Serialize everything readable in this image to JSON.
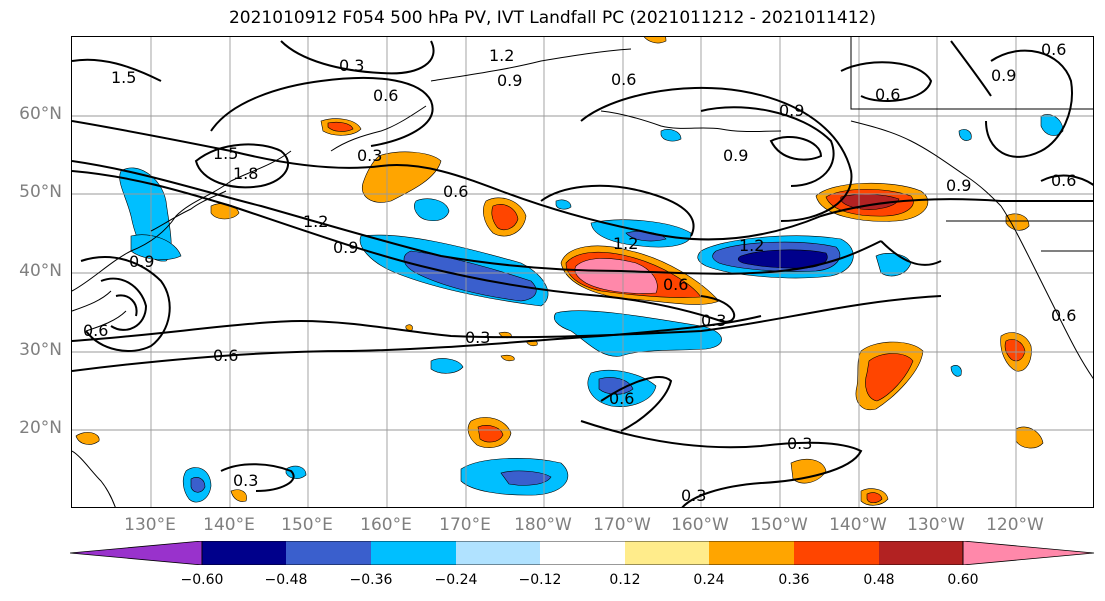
{
  "title": "2021010912 F054 500 hPa PV, IVT Landfall PC (2021011212 - 2021011412)",
  "lat_labels": [
    "60°N",
    "50°N",
    "40°N",
    "30°N",
    "20°N"
  ],
  "lon_labels": [
    "130°E",
    "140°E",
    "150°E",
    "160°E",
    "170°E",
    "180°W",
    "170°W",
    "160°W",
    "150°W",
    "140°W",
    "130°W",
    "120°W"
  ],
  "colorbar": {
    "colors": [
      "#9932cc",
      "#00008b",
      "#3a5fcd",
      "#00bfff",
      "#b0e2ff",
      "#ffffff",
      "#ffec8b",
      "#ffa500",
      "#ff4500",
      "#b22222",
      "#ff88aa"
    ],
    "ticks": [
      "−0.60",
      "−0.48",
      "−0.36",
      "−0.24",
      "−0.12",
      "0.12",
      "0.24",
      "0.36",
      "0.48",
      "0.60"
    ]
  },
  "contour_labels": [
    "1.5",
    "0.3",
    "1.2",
    "0.9",
    "0.6",
    "1.5",
    "1.8",
    "0.6",
    "1.2",
    "0.9",
    "0.9",
    "0.6",
    "1.2",
    "0.9",
    "1.2",
    "0.6",
    "0.3",
    "0.3",
    "0.6",
    "0.3",
    "0.3",
    "0.3",
    "0.6",
    "0.9",
    "0.6",
    "0.9",
    "0.6",
    "0.6",
    "0.6",
    "0.9",
    "0.6",
    "0.3"
  ]
}
